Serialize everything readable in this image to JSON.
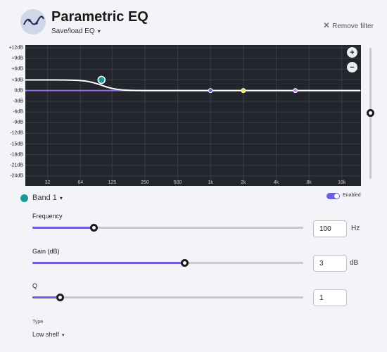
{
  "header": {
    "title": "Parametric EQ",
    "save_load": "Save/load EQ",
    "remove": "Remove filter",
    "logo_icon": "eq-curve-logo",
    "caret_icon": "▾",
    "close_icon": "✕"
  },
  "chart": {
    "y_ticks": [
      "+12dB",
      "+9dB",
      "+6dB",
      "+3dB",
      "0dB",
      "-3dB",
      "-6dB",
      "-9dB",
      "-12dB",
      "-15dB",
      "-18dB",
      "-21dB",
      "-24dB"
    ],
    "x_ticks": [
      "32",
      "64",
      "125",
      "250",
      "500",
      "1k",
      "2k",
      "4k",
      "8k",
      "16k"
    ],
    "zoom_in": "+",
    "zoom_out": "−",
    "plot_bg": "#22252b",
    "curve_color": "#ffffff",
    "baseline_color": "#8c6ee0",
    "bands": [
      {
        "freq": 100,
        "gain_db": 3,
        "color": "#1a9a94",
        "active": true
      },
      {
        "freq": 1000,
        "gain_db": 0,
        "color": "#6e5fd8",
        "active": false
      },
      {
        "freq": 2000,
        "gain_db": 0,
        "color": "#f2e24a",
        "active": false
      },
      {
        "freq": 6000,
        "gain_db": 0,
        "color": "#c28ae0",
        "active": false
      }
    ]
  },
  "volume": {
    "level_db": -6
  },
  "band": {
    "label": "Band 1",
    "color": "#1a9a94",
    "enabled_label": "Enabled",
    "enabled": true
  },
  "params": {
    "frequency": {
      "label": "Frequency",
      "value": "100",
      "unit": "Hz",
      "fraction": 0.225
    },
    "gain": {
      "label": "Gain (dB)",
      "value": "3",
      "unit": "dB",
      "fraction": 0.56
    },
    "q": {
      "label": "Q",
      "value": "1",
      "unit": "",
      "fraction": 0.1
    }
  },
  "type": {
    "label": "Type",
    "value": "Low shelf"
  },
  "accent": "#6e5fd8"
}
